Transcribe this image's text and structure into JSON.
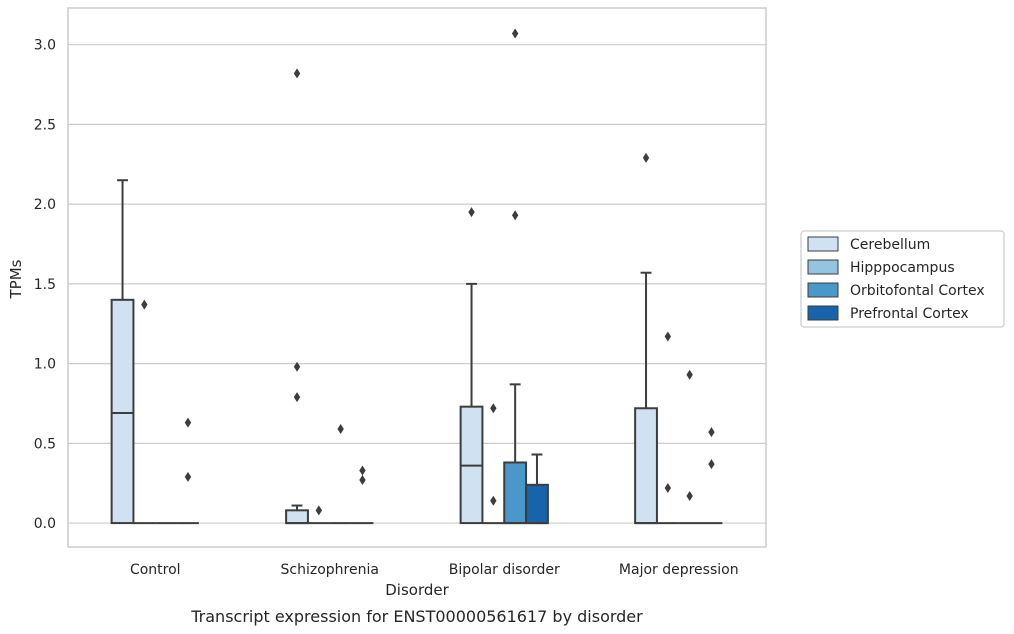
{
  "chart_data": {
    "type": "box",
    "caption": "Transcript expression for ENST00000561617 by disorder",
    "xlabel": "Disorder",
    "ylabel": "TPMs",
    "ylim": [
      -0.15,
      3.23
    ],
    "yticks": [
      0.0,
      0.5,
      1.0,
      1.5,
      2.0,
      2.5,
      3.0
    ],
    "ytick_labels": [
      "0.0",
      "0.5",
      "1.0",
      "1.5",
      "2.0",
      "2.5",
      "3.0"
    ],
    "grid": "horizontal",
    "legend_position": "right",
    "categories": [
      "Control",
      "Schizophrenia",
      "Bipolar disorder",
      "Major depression"
    ],
    "series": [
      {
        "name": "Cerebellum",
        "color": "#d0e1f2",
        "boxes": [
          {
            "whislo": 0.0,
            "q1": 0.0,
            "med": 0.69,
            "q3": 1.4,
            "whishi": 2.15,
            "fliers": []
          },
          {
            "whislo": 0.0,
            "q1": 0.0,
            "med": 0.0,
            "q3": 0.08,
            "whishi": 0.11,
            "fliers": [
              0.79,
              0.98,
              2.82
            ]
          },
          {
            "whislo": 0.0,
            "q1": 0.0,
            "med": 0.36,
            "q3": 0.73,
            "whishi": 1.5,
            "fliers": [
              1.95
            ]
          },
          {
            "whislo": 0.0,
            "q1": 0.0,
            "med": 0.0,
            "q3": 0.72,
            "whishi": 1.57,
            "fliers": [
              2.29
            ]
          }
        ]
      },
      {
        "name": "Hipppocampus",
        "color": "#94c4df",
        "boxes": [
          {
            "whislo": 0.0,
            "q1": 0.0,
            "med": 0.0,
            "q3": 0.0,
            "whishi": 0.0,
            "fliers": [
              1.37
            ]
          },
          {
            "whislo": 0.0,
            "q1": 0.0,
            "med": 0.0,
            "q3": 0.0,
            "whishi": 0.0,
            "fliers": [
              0.08
            ]
          },
          {
            "whislo": 0.0,
            "q1": 0.0,
            "med": 0.0,
            "q3": 0.0,
            "whishi": 0.0,
            "fliers": [
              0.14,
              0.72
            ]
          },
          {
            "whislo": 0.0,
            "q1": 0.0,
            "med": 0.0,
            "q3": 0.0,
            "whishi": 0.0,
            "fliers": [
              0.22,
              1.17
            ]
          }
        ]
      },
      {
        "name": "Orbitofontal Cortex",
        "color": "#4a98c9",
        "boxes": [
          {
            "whislo": 0.0,
            "q1": 0.0,
            "med": 0.0,
            "q3": 0.0,
            "whishi": 0.0,
            "fliers": []
          },
          {
            "whislo": 0.0,
            "q1": 0.0,
            "med": 0.0,
            "q3": 0.0,
            "whishi": 0.0,
            "fliers": [
              0.59
            ]
          },
          {
            "whislo": 0.0,
            "q1": 0.0,
            "med": 0.0,
            "q3": 0.38,
            "whishi": 0.87,
            "fliers": [
              1.93,
              3.07
            ]
          },
          {
            "whislo": 0.0,
            "q1": 0.0,
            "med": 0.0,
            "q3": 0.0,
            "whishi": 0.0,
            "fliers": [
              0.17,
              0.93
            ]
          }
        ]
      },
      {
        "name": "Prefrontal Cortex",
        "color": "#1764ab",
        "boxes": [
          {
            "whislo": 0.0,
            "q1": 0.0,
            "med": 0.0,
            "q3": 0.0,
            "whishi": 0.0,
            "fliers": [
              0.29,
              0.63
            ]
          },
          {
            "whislo": 0.0,
            "q1": 0.0,
            "med": 0.0,
            "q3": 0.0,
            "whishi": 0.0,
            "fliers": [
              0.27,
              0.33
            ]
          },
          {
            "whislo": 0.0,
            "q1": 0.0,
            "med": 0.0,
            "q3": 0.24,
            "whishi": 0.43,
            "fliers": []
          },
          {
            "whislo": 0.0,
            "q1": 0.0,
            "med": 0.0,
            "q3": 0.0,
            "whishi": 0.0,
            "fliers": [
              0.37,
              0.57
            ]
          }
        ]
      }
    ]
  },
  "colors": {
    "line": "#3d3d3d",
    "grid": "#cccccc",
    "frame": "#cccccc",
    "text": "#262626"
  }
}
